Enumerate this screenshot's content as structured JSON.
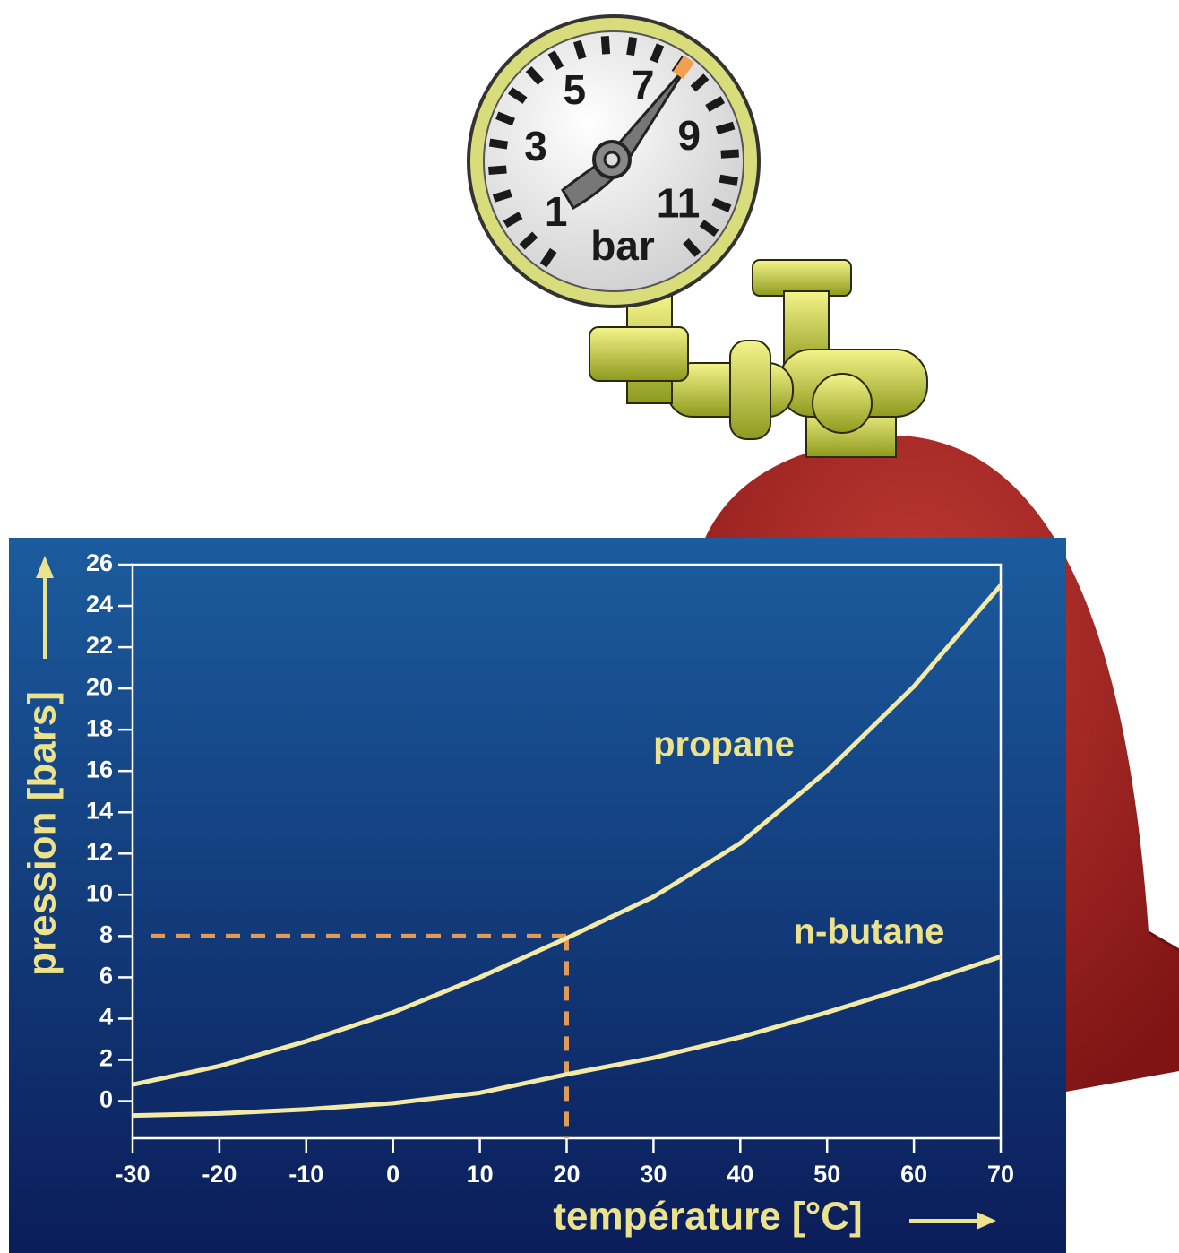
{
  "chart_data": {
    "type": "line",
    "x_label": "température [°C]",
    "y_label": "pression [bars]",
    "x": [
      -30,
      -20,
      -10,
      0,
      10,
      20,
      30,
      40,
      50,
      60,
      70
    ],
    "series": [
      {
        "name": "propane",
        "color": "#f2eaa6",
        "values": [
          0.8,
          1.7,
          2.9,
          4.3,
          6.0,
          7.9,
          9.9,
          12.5,
          16.0,
          20.1,
          25.0
        ]
      },
      {
        "name": "n-butane",
        "color": "#f2eaa6",
        "values": [
          -0.7,
          -0.6,
          -0.4,
          -0.1,
          0.4,
          1.3,
          2.1,
          3.1,
          4.3,
          5.6,
          7.0
        ]
      }
    ],
    "xlim": [
      -30,
      70
    ],
    "xticks": [
      -30,
      -20,
      -10,
      0,
      10,
      20,
      30,
      40,
      50,
      60,
      70
    ],
    "ylim": [
      -1.8,
      26
    ],
    "yticks": [
      0,
      2,
      4,
      6,
      8,
      10,
      12,
      14,
      16,
      18,
      20,
      22,
      24,
      26
    ],
    "reference": {
      "x": 20,
      "y": 8,
      "color": "#e39a55"
    }
  },
  "gauge": {
    "ticks": [
      1,
      3,
      5,
      7,
      9,
      11
    ],
    "unit": "bar"
  }
}
